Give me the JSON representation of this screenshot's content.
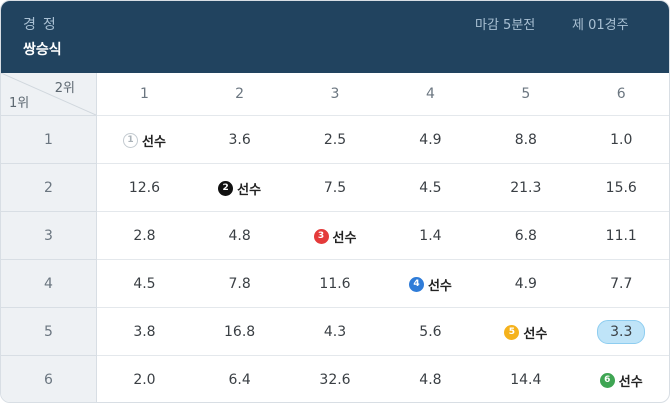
{
  "header": {
    "event": "경정",
    "bet_type": "쌍승식",
    "deadline": "마감 5분전",
    "race": "제 01경주"
  },
  "table": {
    "corner_col_label": "2위",
    "corner_row_label": "1위",
    "col_labels": [
      "1",
      "2",
      "3",
      "4",
      "5",
      "6"
    ],
    "row_labels": [
      "1",
      "2",
      "3",
      "4",
      "5",
      "6"
    ],
    "self_label": "선수",
    "badge_colors": [
      "#ffffff",
      "#111111",
      "#e43a3a",
      "#2f7cd8",
      "#f5b21c",
      "#3fa553"
    ],
    "highlight_color": "#bfe4f8",
    "rows": [
      [
        "선수",
        "3.6",
        "2.5",
        "4.9",
        "8.8",
        "1.0"
      ],
      [
        "12.6",
        "선수",
        "7.5",
        "4.5",
        "21.3",
        "15.6"
      ],
      [
        "2.8",
        "4.8",
        "선수",
        "1.4",
        "6.8",
        "11.1"
      ],
      [
        "4.5",
        "7.8",
        "11.6",
        "선수",
        "4.9",
        "7.7"
      ],
      [
        "3.8",
        "16.8",
        "4.3",
        "5.6",
        "선수",
        "3.3"
      ],
      [
        "2.0",
        "6.4",
        "32.6",
        "4.8",
        "14.4",
        "선수"
      ]
    ],
    "highlighted_cell": {
      "row": 5,
      "col": 6,
      "value": "3.3"
    }
  }
}
